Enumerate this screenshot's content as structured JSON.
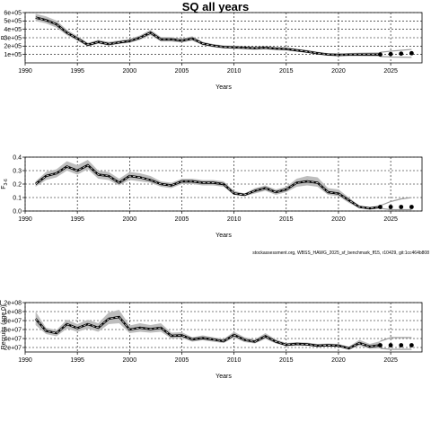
{
  "title": "SQ all years",
  "footnote": "stockassessment.org, WBSS_HAWG_2025_sf_benchmark_ff15, r10429, git:1cc464b808",
  "colors": {
    "line": "#000000",
    "band": "#bdbdbd",
    "grid": "#000000",
    "projection": "#9e9e9e"
  },
  "chart_data": [
    {
      "type": "line",
      "ylabel": "R",
      "xlabel": "Years",
      "xlim": [
        1990,
        2028
      ],
      "ylim": [
        0,
        600000
      ],
      "xticks": [
        1990,
        1995,
        2000,
        2005,
        2010,
        2015,
        2020,
        2025
      ],
      "xtick_labels": [
        "1990",
        "1995",
        "2000",
        "2005",
        "2010",
        "2015",
        "2020",
        "2025"
      ],
      "yticks": [
        100000,
        200000,
        300000,
        400000,
        500000,
        600000
      ],
      "ytick_labels": [
        "1e+05",
        "2e+05",
        "3e+05",
        "4e+05",
        "5e+05",
        "6e+05"
      ],
      "grid": true,
      "series": [
        {
          "x": [
            1991,
            1992,
            1993,
            1994,
            1995,
            1996,
            1997,
            1998,
            1999,
            2000,
            2001,
            2002,
            2003,
            2004,
            2005,
            2006,
            2007,
            2008,
            2009,
            2010,
            2011,
            2012,
            2013,
            2014,
            2015,
            2016,
            2017,
            2018,
            2019,
            2020,
            2021,
            2022,
            2023,
            2024
          ],
          "values": [
            540000,
            510000,
            460000,
            360000,
            290000,
            215000,
            250000,
            225000,
            245000,
            260000,
            300000,
            360000,
            280000,
            280000,
            265000,
            290000,
            230000,
            205000,
            190000,
            185000,
            180000,
            175000,
            180000,
            170000,
            165000,
            150000,
            135000,
            115000,
            100000,
            95000,
            98000,
            100000,
            100000,
            100000
          ],
          "low": [
            500000,
            470000,
            420000,
            330000,
            265000,
            195000,
            228000,
            205000,
            225000,
            238000,
            275000,
            330000,
            255000,
            255000,
            242000,
            265000,
            210000,
            187000,
            173000,
            168000,
            163000,
            158000,
            162000,
            153000,
            147000,
            133000,
            118000,
            99000,
            85000,
            80000,
            80000,
            80000,
            78000,
            76000
          ],
          "high": [
            585000,
            555000,
            505000,
            395000,
            320000,
            240000,
            275000,
            250000,
            268000,
            285000,
            328000,
            395000,
            308000,
            307000,
            290000,
            318000,
            252000,
            225000,
            208000,
            203000,
            198000,
            193000,
            199000,
            188000,
            184000,
            168000,
            153000,
            132000,
            117000,
            112000,
            118000,
            122000,
            124000,
            126000
          ]
        }
      ],
      "projection": {
        "x": [
          2024,
          2025,
          2026,
          2027
        ],
        "values": [
          100000,
          105000,
          110000,
          115000
        ],
        "low": [
          76000,
          70000,
          68000,
          66000
        ],
        "high": [
          126000,
          140000,
          150000,
          160000
        ]
      }
    },
    {
      "type": "line",
      "ylabel": "F",
      "ylabel_sub": "3-6",
      "xlabel": "Years",
      "xlim": [
        1990,
        2028
      ],
      "ylim": [
        0,
        0.4
      ],
      "xticks": [
        1990,
        1995,
        2000,
        2005,
        2010,
        2015,
        2020,
        2025
      ],
      "xtick_labels": [
        "1990",
        "1995",
        "2000",
        "2005",
        "2010",
        "2015",
        "2020",
        "2025"
      ],
      "yticks": [
        0,
        0.1,
        0.2,
        0.3,
        0.4
      ],
      "ytick_labels": [
        "0.0",
        "0.1",
        "0.2",
        "0.3",
        "0.4"
      ],
      "grid": true,
      "series": [
        {
          "x": [
            1991,
            1992,
            1993,
            1994,
            1995,
            1996,
            1997,
            1998,
            1999,
            2000,
            2001,
            2002,
            2003,
            2004,
            2005,
            2006,
            2007,
            2008,
            2009,
            2010,
            2011,
            2012,
            2013,
            2014,
            2015,
            2016,
            2017,
            2018,
            2019,
            2020,
            2021,
            2022,
            2023,
            2024
          ],
          "values": [
            0.2,
            0.26,
            0.28,
            0.33,
            0.3,
            0.34,
            0.27,
            0.26,
            0.21,
            0.26,
            0.25,
            0.23,
            0.2,
            0.19,
            0.22,
            0.22,
            0.21,
            0.21,
            0.2,
            0.13,
            0.12,
            0.15,
            0.17,
            0.14,
            0.16,
            0.21,
            0.22,
            0.21,
            0.14,
            0.13,
            0.08,
            0.03,
            0.02,
            0.03
          ],
          "low": [
            0.18,
            0.23,
            0.25,
            0.3,
            0.27,
            0.31,
            0.24,
            0.23,
            0.19,
            0.23,
            0.22,
            0.21,
            0.18,
            0.17,
            0.2,
            0.2,
            0.19,
            0.19,
            0.18,
            0.12,
            0.11,
            0.13,
            0.15,
            0.12,
            0.14,
            0.18,
            0.19,
            0.18,
            0.12,
            0.11,
            0.06,
            0.02,
            0.01,
            0.02
          ],
          "high": [
            0.22,
            0.29,
            0.31,
            0.37,
            0.34,
            0.38,
            0.3,
            0.29,
            0.24,
            0.29,
            0.28,
            0.26,
            0.22,
            0.21,
            0.24,
            0.24,
            0.23,
            0.23,
            0.22,
            0.15,
            0.13,
            0.17,
            0.19,
            0.16,
            0.18,
            0.24,
            0.26,
            0.25,
            0.17,
            0.16,
            0.1,
            0.04,
            0.03,
            0.04
          ]
        }
      ],
      "projection": {
        "x": [
          2024,
          2025,
          2026,
          2027
        ],
        "values": [
          0.03,
          0.03,
          0.03,
          0.03
        ],
        "low": [
          0.02,
          0.01,
          0.01,
          0.01
        ],
        "high": [
          0.04,
          0.07,
          0.09,
          0.1
        ]
      }
    },
    {
      "type": "line",
      "ylabel": "Recruits (age 0)",
      "xlabel": "Years",
      "xlim": [
        1990,
        2028
      ],
      "ylim": [
        10000000,
        120000000
      ],
      "xticks": [
        1990,
        1995,
        2000,
        2005,
        2010,
        2015,
        2020,
        2025
      ],
      "xtick_labels": [
        "1990",
        "1995",
        "2000",
        "2005",
        "2010",
        "2015",
        "2020",
        "2025"
      ],
      "yticks": [
        20000000,
        40000000,
        60000000,
        80000000,
        100000000,
        120000000
      ],
      "ytick_labels": [
        "2e+07",
        "4e+07",
        "6e+07",
        "8e+07",
        "1e+08",
        "1.2e+08"
      ],
      "grid": true,
      "series": [
        {
          "x": [
            1991,
            1992,
            1993,
            1994,
            1995,
            1996,
            1997,
            1998,
            1999,
            2000,
            2001,
            2002,
            2003,
            2004,
            2005,
            2006,
            2007,
            2008,
            2009,
            2010,
            2011,
            2012,
            2013,
            2014,
            2015,
            2016,
            2017,
            2018,
            2019,
            2020,
            2021,
            2022,
            2023,
            2024
          ],
          "values": [
            84000000,
            57000000,
            52000000,
            72000000,
            63000000,
            72000000,
            64000000,
            84000000,
            88000000,
            60000000,
            64000000,
            61000000,
            64000000,
            46000000,
            47000000,
            38000000,
            41000000,
            38000000,
            34000000,
            48000000,
            37000000,
            33000000,
            45000000,
            33000000,
            26000000,
            28000000,
            27000000,
            24000000,
            25000000,
            24000000,
            18000000,
            30000000,
            22000000,
            25000000
          ],
          "low": [
            70000000,
            50000000,
            45000000,
            62000000,
            55000000,
            62000000,
            55000000,
            72000000,
            74000000,
            52000000,
            55000000,
            53000000,
            55000000,
            40000000,
            41000000,
            33000000,
            36000000,
            33000000,
            30000000,
            42000000,
            32000000,
            29000000,
            39000000,
            29000000,
            23000000,
            24000000,
            24000000,
            21000000,
            22000000,
            21000000,
            15000000,
            24000000,
            17000000,
            18000000
          ],
          "high": [
            100000000,
            64000000,
            59000000,
            82000000,
            72000000,
            82000000,
            74000000,
            98000000,
            104000000,
            69000000,
            74000000,
            70000000,
            74000000,
            53000000,
            54000000,
            43000000,
            47000000,
            43000000,
            39000000,
            55000000,
            43000000,
            38000000,
            52000000,
            38000000,
            30000000,
            32000000,
            31000000,
            28000000,
            29000000,
            28000000,
            22000000,
            37000000,
            28000000,
            34000000
          ]
        }
      ],
      "projection": {
        "x": [
          2024,
          2025,
          2026,
          2027
        ],
        "values": [
          25000000,
          25000000,
          25000000,
          25000000
        ],
        "low": [
          18000000,
          16000000,
          16000000,
          16000000
        ],
        "high": [
          34000000,
          42000000,
          42000000,
          42000000
        ]
      }
    }
  ]
}
